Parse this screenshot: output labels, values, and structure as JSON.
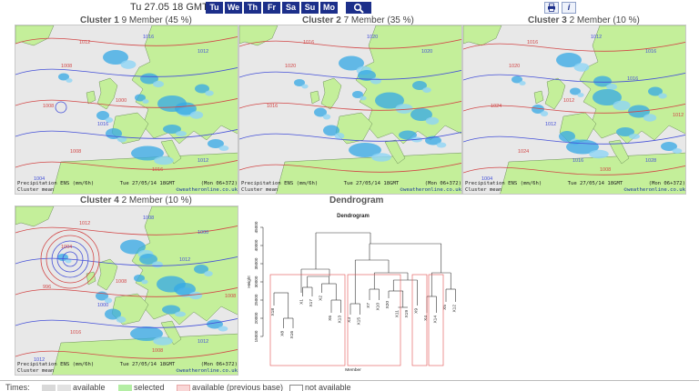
{
  "header": {
    "date": "Tu 27.05 18 GMT",
    "days": [
      "Tu",
      "We",
      "Th",
      "Fr",
      "Sa",
      "Su",
      "Mo"
    ],
    "zoom_icon": "magnifier-icon",
    "print_icon": "printer-icon",
    "info_icon": "info-icon"
  },
  "clusters": [
    {
      "title": "Cluster 1",
      "members": "9 Member (45 %)",
      "caption_left": "Precipitation ENS (mm/6h)",
      "caption_mid": "Tue 27/05/14 18GMT",
      "caption_right": "(Mon 06+372)",
      "caption_left2": "Cluster mean",
      "caption_copy": "©weatheronline.co.uk",
      "isobars": [
        "1012",
        "1016",
        "1008",
        "1012",
        "1008",
        "1016",
        "1016",
        "1012",
        "1008",
        "1004",
        "1000"
      ]
    },
    {
      "title": "Cluster 2",
      "members": "7 Member (35 %)",
      "caption_left": "Precipitation ENS (mm/6h)",
      "caption_mid": "Tue 27/05/14 18GMT",
      "caption_right": "(Mon 06+372)",
      "caption_left2": "Cluster mean",
      "caption_copy": "©weatheronline.co.uk",
      "isobars": [
        "1016",
        "1020",
        "1020",
        "1020",
        "1016"
      ]
    },
    {
      "title": "Cluster 3",
      "members": "2 Member (10 %)",
      "caption_left": "Precipitation ENS (mm/6h)",
      "caption_mid": "Tue 27/05/14 18GMT",
      "caption_right": "(Mon 06+372)",
      "caption_left2": "Cluster mean",
      "caption_copy": "©weatheronline.co.uk",
      "isobars": [
        "1016",
        "1012",
        "1020",
        "1016",
        "1024",
        "1012",
        "1008",
        "1028",
        "1024",
        "1004",
        "1012",
        "1016",
        "1012",
        "1016"
      ]
    },
    {
      "title": "Cluster 4",
      "members": "2 Member (10 %)",
      "caption_left": "Precipitation ENS (mm/6h)",
      "caption_mid": "Tue 27/05/14 18GMT",
      "caption_right": "(Mon 06+372)",
      "caption_left2": "Cluster mean",
      "caption_copy": "©weatheronline.co.uk",
      "isobars": [
        "1012",
        "1008",
        "1004",
        "1000",
        "996",
        "1000",
        "1008",
        "1012",
        "1016",
        "1012",
        "1008",
        "1012",
        "1008"
      ]
    }
  ],
  "dendrogram": {
    "heading": "Dendrogram",
    "plot_title": "Dendrogram",
    "ylabel": "Height",
    "xlabel": "Member",
    "yticks": [
      "15000",
      "20000",
      "25000",
      "30000",
      "35000",
      "40000",
      "45000"
    ],
    "leaves": [
      "X18",
      "X8",
      "X16",
      "X1",
      "X17",
      "X2",
      "X6",
      "X13",
      "X3",
      "X15",
      "X7",
      "X10",
      "X20",
      "X11",
      "X19",
      "X9",
      "X4",
      "X14",
      "X5",
      "X12"
    ]
  },
  "legend": {
    "times": "Times:",
    "available": "available",
    "selected": "selected",
    "previous": "available (previous base)",
    "not_available": "not available",
    "colors": {
      "available": "#d9d9d9",
      "selected": "#b4eea4",
      "previous": "#f9d6d6",
      "not_available": "#ffffff"
    }
  },
  "colors": {
    "day_button": "#1c2f8a",
    "sea": "#e8e8e8",
    "land": "#c4ef9a",
    "rain": "#34a8e6",
    "isobar_red": "#d24747",
    "isobar_blue": "#4450d8"
  }
}
